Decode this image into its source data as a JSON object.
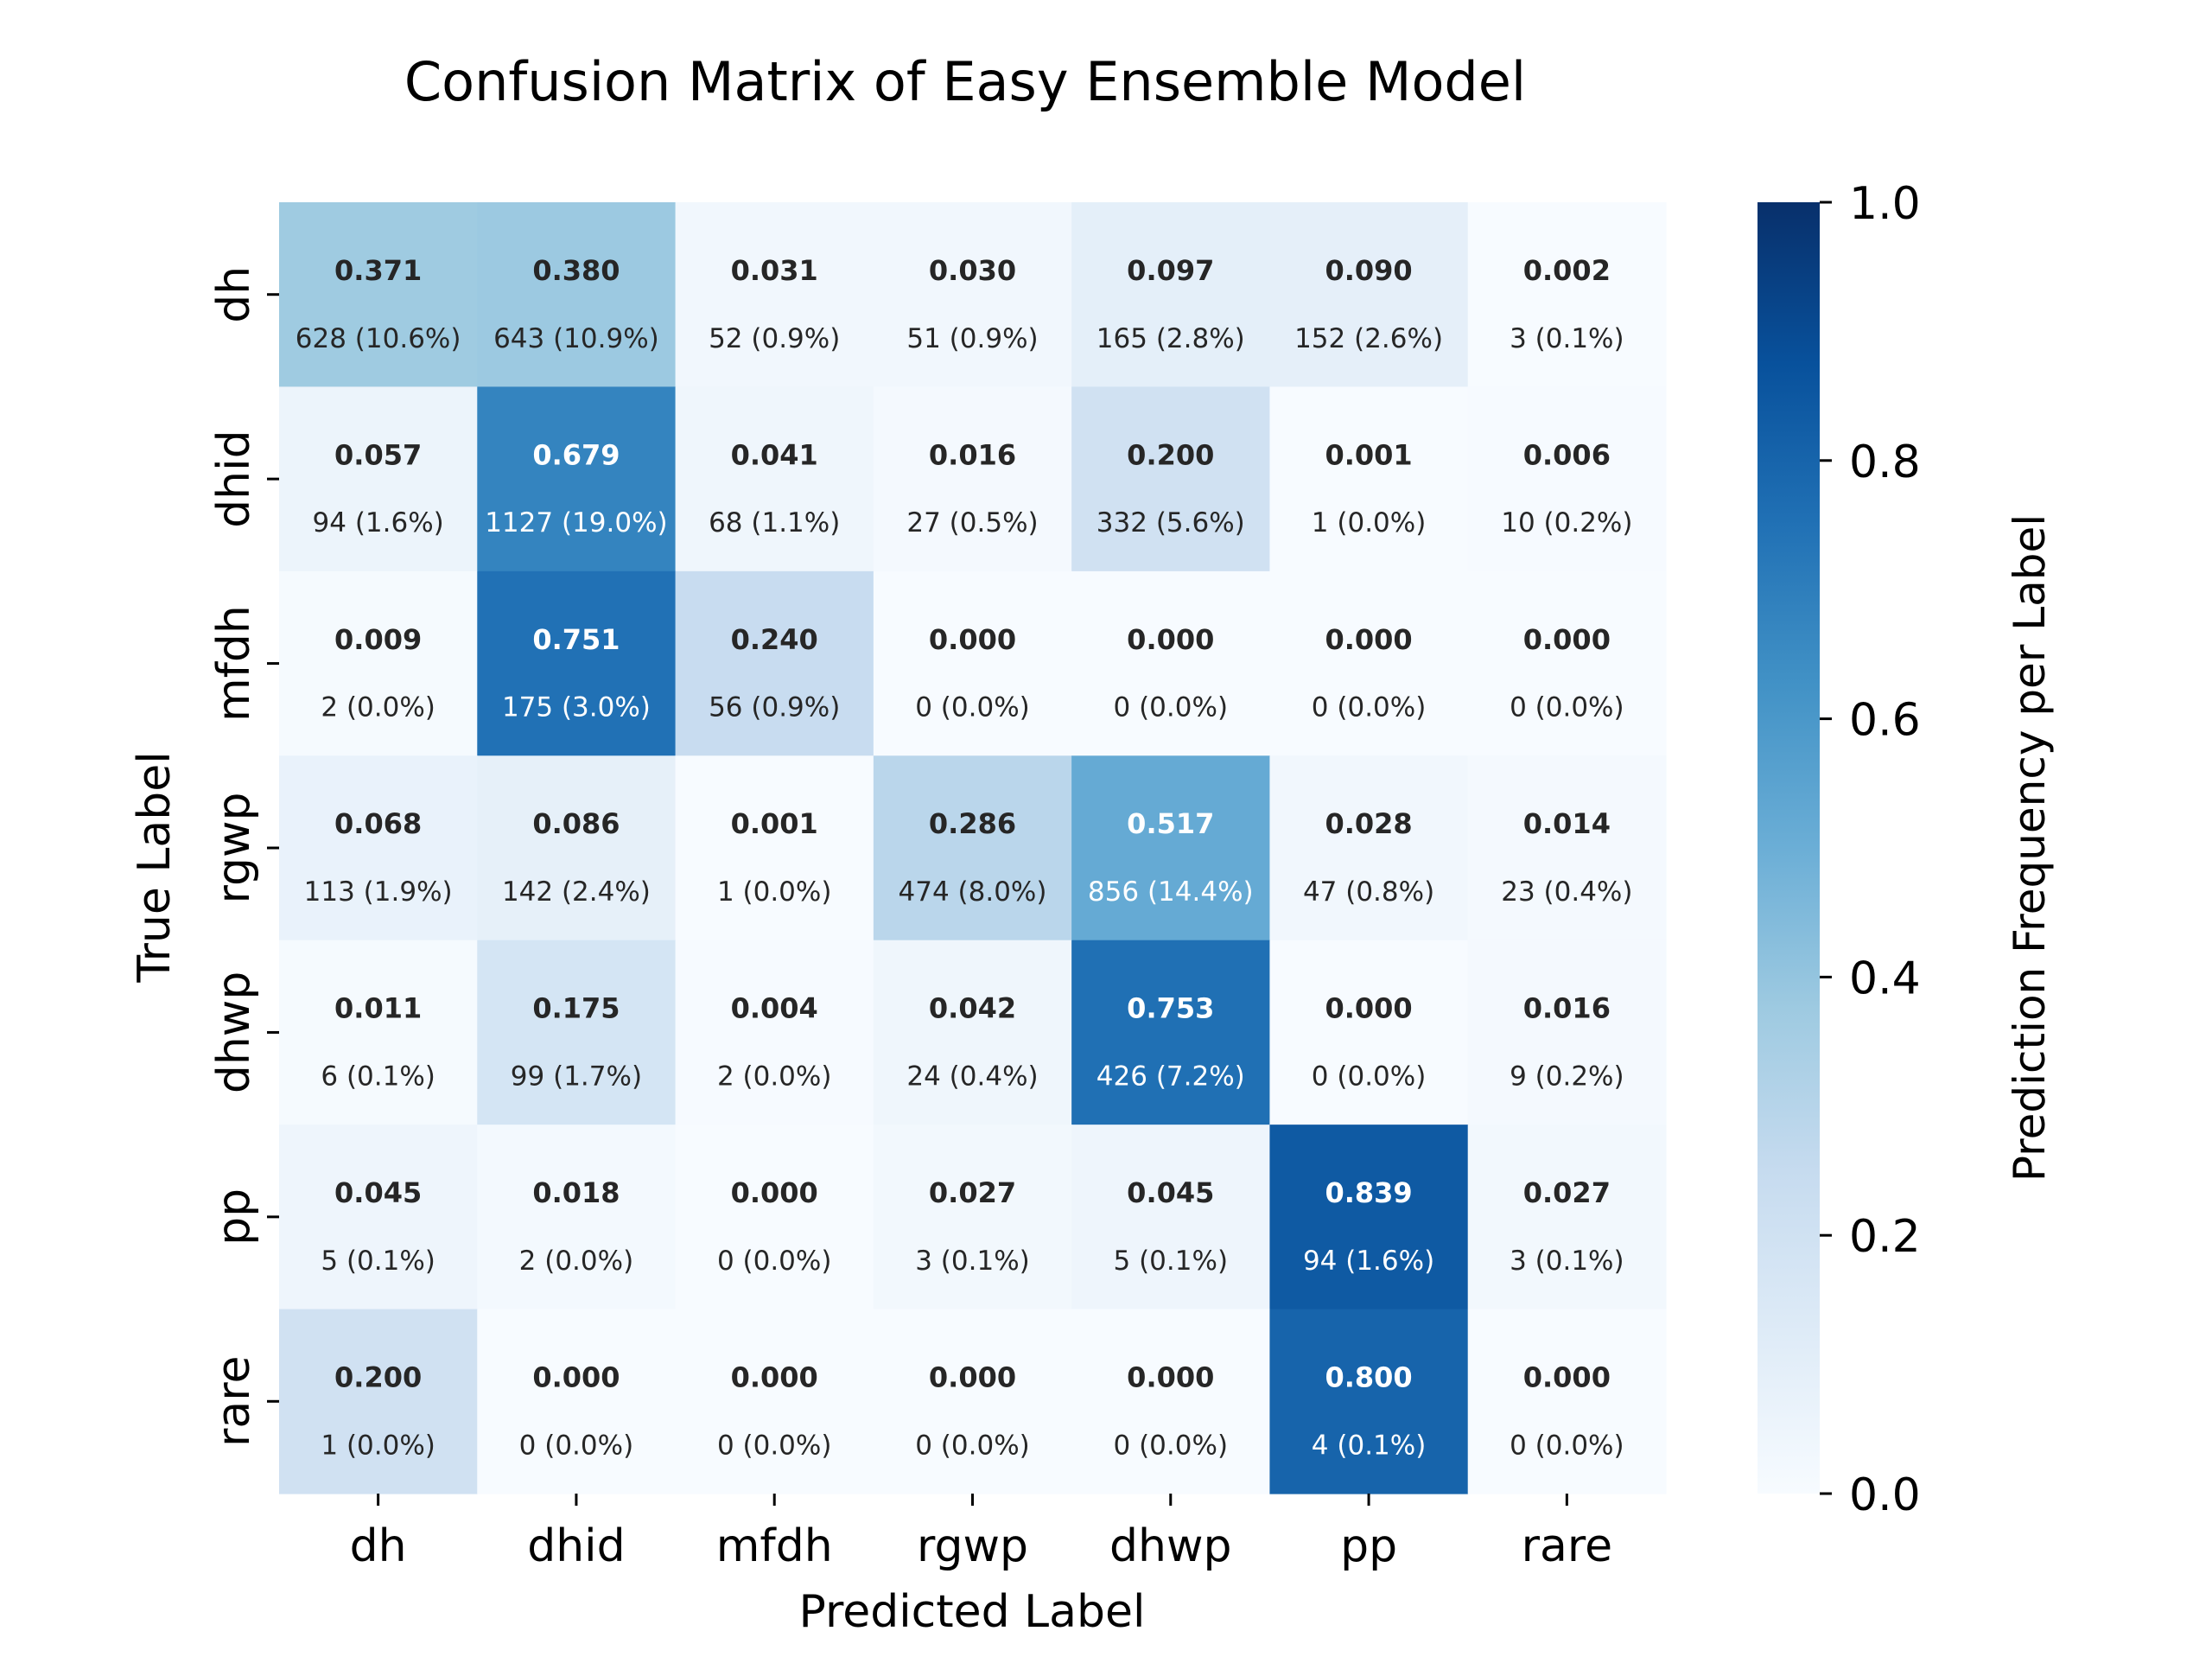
{
  "chart_data": {
    "type": "heatmap",
    "title": "Confusion Matrix of Easy Ensemble Model",
    "xlabel": "Predicted Label",
    "ylabel": "True Label",
    "x_categories": [
      "dh",
      "dhid",
      "mfdh",
      "rgwp",
      "dhwp",
      "pp",
      "rare"
    ],
    "y_categories": [
      "dh",
      "dhid",
      "mfdh",
      "rgwp",
      "dhwp",
      "pp",
      "rare"
    ],
    "values": [
      [
        0.371,
        0.38,
        0.031,
        0.03,
        0.097,
        0.09,
        0.002
      ],
      [
        0.057,
        0.679,
        0.041,
        0.016,
        0.2,
        0.001,
        0.006
      ],
      [
        0.009,
        0.751,
        0.24,
        0.0,
        0.0,
        0.0,
        0.0
      ],
      [
        0.068,
        0.086,
        0.001,
        0.286,
        0.517,
        0.028,
        0.014
      ],
      [
        0.011,
        0.175,
        0.004,
        0.042,
        0.753,
        0.0,
        0.016
      ],
      [
        0.045,
        0.018,
        0.0,
        0.027,
        0.045,
        0.839,
        0.027
      ],
      [
        0.2,
        0.0,
        0.0,
        0.0,
        0.0,
        0.8,
        0.0
      ]
    ],
    "value_labels": [
      [
        "0.371",
        "0.380",
        "0.031",
        "0.030",
        "0.097",
        "0.090",
        "0.002"
      ],
      [
        "0.057",
        "0.679",
        "0.041",
        "0.016",
        "0.200",
        "0.001",
        "0.006"
      ],
      [
        "0.009",
        "0.751",
        "0.240",
        "0.000",
        "0.000",
        "0.000",
        "0.000"
      ],
      [
        "0.068",
        "0.086",
        "0.001",
        "0.286",
        "0.517",
        "0.028",
        "0.014"
      ],
      [
        "0.011",
        "0.175",
        "0.004",
        "0.042",
        "0.753",
        "0.000",
        "0.016"
      ],
      [
        "0.045",
        "0.018",
        "0.000",
        "0.027",
        "0.045",
        "0.839",
        "0.027"
      ],
      [
        "0.200",
        "0.000",
        "0.000",
        "0.000",
        "0.000",
        "0.800",
        "0.000"
      ]
    ],
    "count_labels": [
      [
        "628 (10.6%)",
        "643 (10.9%)",
        "52 (0.9%)",
        "51 (0.9%)",
        "165 (2.8%)",
        "152 (2.6%)",
        "3 (0.1%)"
      ],
      [
        "94 (1.6%)",
        "1127 (19.0%)",
        "68 (1.1%)",
        "27 (0.5%)",
        "332 (5.6%)",
        "1 (0.0%)",
        "10 (0.2%)"
      ],
      [
        "2 (0.0%)",
        "175 (3.0%)",
        "56 (0.9%)",
        "0 (0.0%)",
        "0 (0.0%)",
        "0 (0.0%)",
        "0 (0.0%)"
      ],
      [
        "113 (1.9%)",
        "142 (2.4%)",
        "1 (0.0%)",
        "474 (8.0%)",
        "856 (14.4%)",
        "47 (0.8%)",
        "23 (0.4%)"
      ],
      [
        "6 (0.1%)",
        "99 (1.7%)",
        "2 (0.0%)",
        "24 (0.4%)",
        "426 (7.2%)",
        "0 (0.0%)",
        "9 (0.2%)"
      ],
      [
        "5 (0.1%)",
        "2 (0.0%)",
        "0 (0.0%)",
        "3 (0.1%)",
        "5 (0.1%)",
        "94 (1.6%)",
        "3 (0.1%)"
      ],
      [
        "1 (0.0%)",
        "0 (0.0%)",
        "0 (0.0%)",
        "0 (0.0%)",
        "0 (0.0%)",
        "4 (0.1%)",
        "0 (0.0%)"
      ]
    ],
    "colorbar": {
      "label": "Prediction Frequency per Label",
      "range": [
        0.0,
        1.0
      ],
      "ticks": [
        0.0,
        0.2,
        0.4,
        0.6,
        0.8,
        1.0
      ],
      "tick_labels": [
        "0.0",
        "0.2",
        "0.4",
        "0.6",
        "0.8",
        "1.0"
      ]
    },
    "colormap": "Blues",
    "colormap_stops": [
      "#f7fbff",
      "#deebf7",
      "#c6dbef",
      "#9ecae1",
      "#6baed6",
      "#4292c6",
      "#2171b5",
      "#08519c",
      "#08306b"
    ]
  }
}
